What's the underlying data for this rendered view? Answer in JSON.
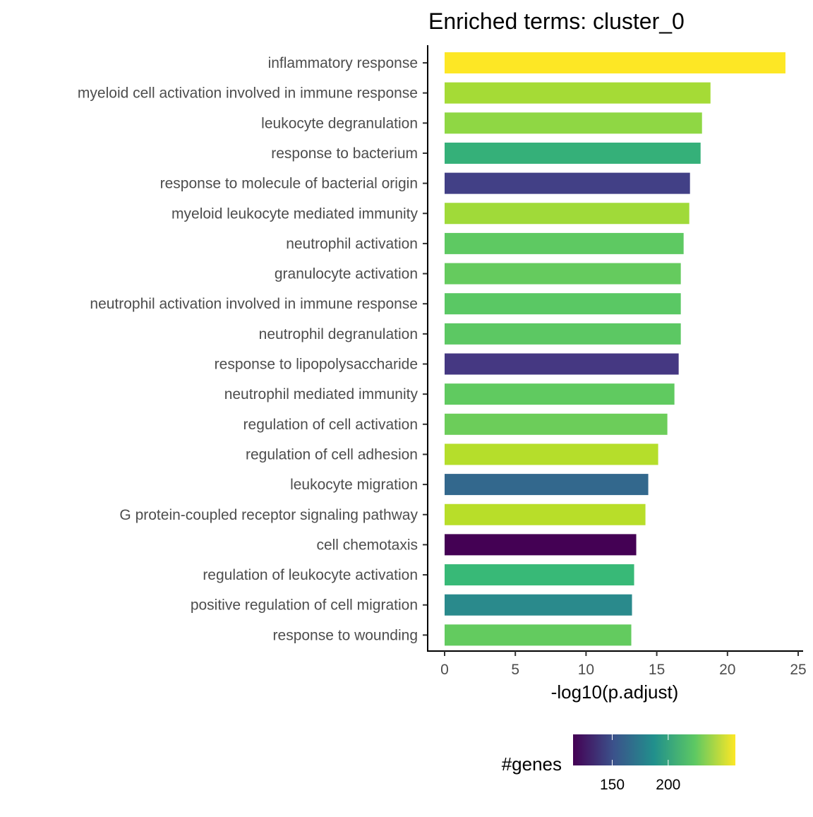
{
  "chart_data": {
    "type": "bar",
    "orientation": "horizontal",
    "title": "Enriched terms: cluster_0",
    "xlabel": "-log10(p.adjust)",
    "ylabel": "",
    "xlim": [
      0,
      25
    ],
    "xticks": [
      0,
      5,
      10,
      15,
      20,
      25
    ],
    "grid": false,
    "categories": [
      "inflammatory response",
      "myeloid cell activation involved in immune response",
      "leukocyte degranulation",
      "response to bacterium",
      "response to molecule of bacterial origin",
      "myeloid leukocyte mediated immunity",
      "neutrophil activation",
      "granulocyte activation",
      "neutrophil activation involved in immune response",
      "neutrophil degranulation",
      "response to lipopolysaccharide",
      "neutrophil mediated immunity",
      "regulation of cell activation",
      "regulation of cell adhesion",
      "leukocyte migration",
      "G protein-coupled receptor signaling pathway",
      "cell chemotaxis",
      "regulation of leukocyte activation",
      "positive regulation of cell migration",
      "response to wounding"
    ],
    "values": [
      24.1,
      18.8,
      18.2,
      18.1,
      17.35,
      17.3,
      16.9,
      16.7,
      16.7,
      16.7,
      16.55,
      16.25,
      15.75,
      15.1,
      14.4,
      14.2,
      13.55,
      13.4,
      13.25,
      13.2
    ],
    "colors": [
      "#fde725",
      "#a5db36",
      "#8fd744",
      "#35b079",
      "#424086",
      "#a0da39",
      "#5ec962",
      "#65cb5e",
      "#5ac864",
      "#5cc863",
      "#453882",
      "#60ca60",
      "#6ccd5a",
      "#b5de2b",
      "#33688d",
      "#b8de29",
      "#440154",
      "#38b977",
      "#2a8a8c",
      "#63cb5f"
    ],
    "color_legend": {
      "title": "#genes",
      "ticks": [
        150,
        200
      ],
      "palette": "viridis"
    }
  }
}
